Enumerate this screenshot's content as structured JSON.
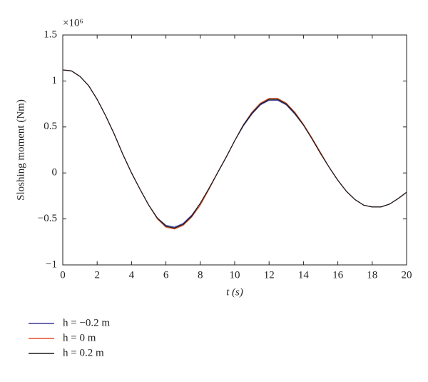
{
  "chart_data": {
    "type": "line",
    "y_multiplier": "×10⁶",
    "xlabel": "t (s)",
    "ylabel": "Sloshing moment (Nm)",
    "x": [
      0,
      0.5,
      1,
      1.5,
      2,
      2.5,
      3,
      3.5,
      4,
      4.5,
      5,
      5.5,
      6,
      6.5,
      7,
      7.5,
      8,
      8.5,
      9,
      9.5,
      10,
      10.5,
      11,
      11.5,
      12,
      12.5,
      13,
      13.5,
      14,
      14.5,
      15,
      15.5,
      16,
      16.5,
      17,
      17.5,
      18,
      18.5,
      19,
      19.5,
      20
    ],
    "series": [
      {
        "name": "h = −0.2 m",
        "color": "#3a3a9a",
        "values": [
          1.12,
          1.11,
          1.05,
          0.95,
          0.8,
          0.62,
          0.42,
          0.2,
          0.0,
          -0.18,
          -0.35,
          -0.49,
          -0.57,
          -0.59,
          -0.55,
          -0.46,
          -0.33,
          -0.17,
          0.0,
          0.17,
          0.35,
          0.51,
          0.64,
          0.74,
          0.79,
          0.79,
          0.74,
          0.64,
          0.52,
          0.37,
          0.21,
          0.06,
          -0.08,
          -0.2,
          -0.29,
          -0.35,
          -0.37,
          -0.37,
          -0.34,
          -0.28,
          -0.21
        ]
      },
      {
        "name": "h = 0 m",
        "color": "#e0502a",
        "values": [
          1.12,
          1.11,
          1.05,
          0.95,
          0.8,
          0.62,
          0.42,
          0.2,
          0.0,
          -0.18,
          -0.35,
          -0.5,
          -0.59,
          -0.61,
          -0.57,
          -0.48,
          -0.35,
          -0.18,
          0.0,
          0.17,
          0.35,
          0.52,
          0.66,
          0.76,
          0.81,
          0.81,
          0.76,
          0.66,
          0.53,
          0.38,
          0.22,
          0.06,
          -0.08,
          -0.2,
          -0.29,
          -0.35,
          -0.37,
          -0.37,
          -0.34,
          -0.28,
          -0.21
        ]
      },
      {
        "name": "h = 0.2 m",
        "color": "#1a1a1a",
        "values": [
          1.12,
          1.11,
          1.05,
          0.95,
          0.8,
          0.62,
          0.42,
          0.2,
          0.0,
          -0.18,
          -0.35,
          -0.49,
          -0.58,
          -0.6,
          -0.56,
          -0.47,
          -0.33,
          -0.17,
          0.0,
          0.17,
          0.35,
          0.52,
          0.65,
          0.75,
          0.8,
          0.8,
          0.75,
          0.65,
          0.52,
          0.37,
          0.21,
          0.06,
          -0.08,
          -0.2,
          -0.29,
          -0.35,
          -0.37,
          -0.37,
          -0.34,
          -0.28,
          -0.21
        ]
      }
    ],
    "xlim": [
      0,
      20
    ],
    "xticks": [
      0,
      2,
      4,
      6,
      8,
      10,
      12,
      14,
      16,
      18,
      20
    ],
    "ylim": [
      -1,
      1.5
    ],
    "yticks": [
      {
        "value": -1,
        "label": "−1"
      },
      {
        "value": -0.5,
        "label": "−0.5"
      },
      0,
      0.5,
      1,
      1.5
    ]
  }
}
